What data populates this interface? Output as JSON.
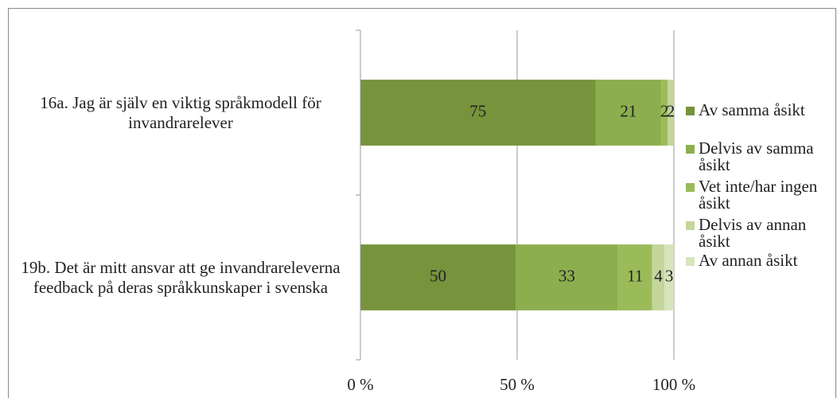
{
  "chart_data": {
    "type": "bar",
    "orientation": "horizontal",
    "stack": "percent",
    "categories": [
      "16a. Jag är själv en viktig språkmodell för invandrarelever",
      "19b. Det är mitt ansvar att ge invandrareleverna feedback på deras språkkunskaper i svenska"
    ],
    "series": [
      {
        "name": "Av samma åsikt",
        "color": "#77933c",
        "values": [
          75,
          50
        ]
      },
      {
        "name": "Delvis av samma åsikt",
        "color": "#8cae4e",
        "values": [
          21,
          33
        ]
      },
      {
        "name": "Vet inte/har ingen åsikt",
        "color": "#9bbb59",
        "values": [
          2,
          11
        ]
      },
      {
        "name": "Delvis av annan åsikt",
        "color": "#c3d69b",
        "values": [
          2,
          4
        ]
      },
      {
        "name": "Av annan åsikt",
        "color": "#d7e4bc",
        "values": [
          null,
          3
        ]
      }
    ],
    "xlim": [
      0,
      100
    ],
    "xticks": [
      {
        "value": 0,
        "label": "0 %"
      },
      {
        "value": 50,
        "label": "50 %"
      },
      {
        "value": 100,
        "label": "100 %"
      }
    ],
    "grid": true,
    "legend": "right"
  }
}
